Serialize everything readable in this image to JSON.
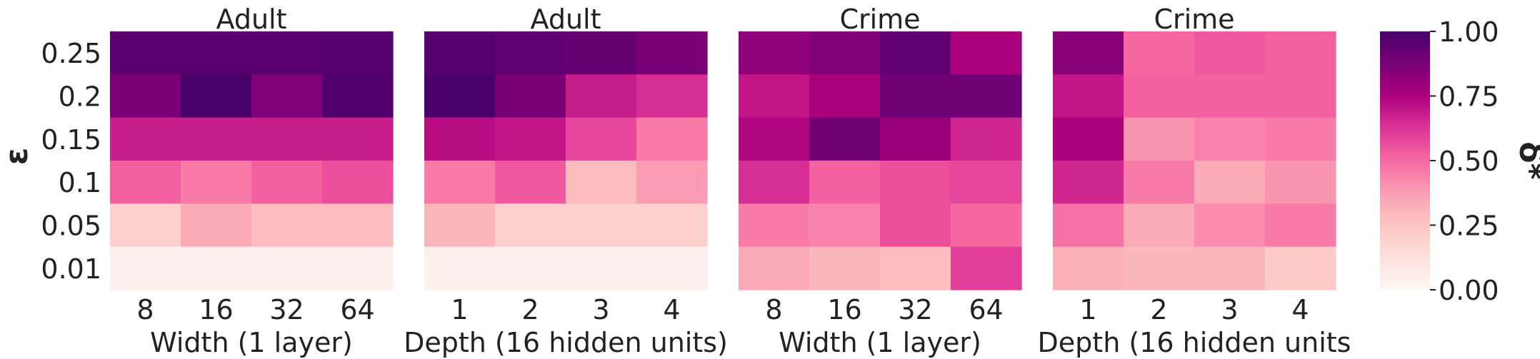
{
  "chart_data": {
    "type": "heatmap",
    "y_label": "ε",
    "y_ticks": [
      "0.25",
      "0.2",
      "0.15",
      "0.1",
      "0.05",
      "0.01"
    ],
    "panels": [
      {
        "title": "Adult",
        "x_label": "Width (1 layer)",
        "x_ticks": [
          "8",
          "16",
          "32",
          "64"
        ],
        "values": [
          [
            0.96,
            0.96,
            0.96,
            0.97
          ],
          [
            0.88,
            1.0,
            0.86,
            0.98
          ],
          [
            0.68,
            0.68,
            0.68,
            0.68
          ],
          [
            0.52,
            0.46,
            0.52,
            0.56
          ],
          [
            0.2,
            0.34,
            0.28,
            0.28
          ],
          [
            0.04,
            0.04,
            0.04,
            0.04
          ]
        ]
      },
      {
        "title": "Adult",
        "x_label": "Depth (16 hidden units)",
        "x_ticks": [
          "1",
          "2",
          "3",
          "4"
        ],
        "values": [
          [
            0.97,
            0.94,
            0.93,
            0.88
          ],
          [
            1.0,
            0.88,
            0.68,
            0.64
          ],
          [
            0.72,
            0.7,
            0.58,
            0.46
          ],
          [
            0.46,
            0.54,
            0.28,
            0.38
          ],
          [
            0.3,
            0.2,
            0.2,
            0.2
          ],
          [
            0.04,
            0.04,
            0.04,
            0.04
          ]
        ]
      },
      {
        "title": "Crime",
        "x_label": "Width (1 layer)",
        "x_ticks": [
          "8",
          "16",
          "32",
          "64"
        ],
        "values": [
          [
            0.82,
            0.86,
            0.94,
            0.76
          ],
          [
            0.7,
            0.76,
            0.9,
            0.9
          ],
          [
            0.74,
            0.9,
            0.8,
            0.66
          ],
          [
            0.64,
            0.52,
            0.56,
            0.58
          ],
          [
            0.46,
            0.44,
            0.56,
            0.5
          ],
          [
            0.34,
            0.3,
            0.28,
            0.6
          ]
        ]
      },
      {
        "title": "Crime",
        "x_label": "Depth (16 hidden units",
        "x_ticks": [
          "1",
          "2",
          "3",
          "4"
        ],
        "values": [
          [
            0.84,
            0.5,
            0.54,
            0.52
          ],
          [
            0.7,
            0.52,
            0.52,
            0.52
          ],
          [
            0.76,
            0.4,
            0.44,
            0.46
          ],
          [
            0.66,
            0.46,
            0.34,
            0.4
          ],
          [
            0.48,
            0.34,
            0.42,
            0.46
          ],
          [
            0.32,
            0.3,
            0.3,
            0.22
          ]
        ]
      }
    ],
    "colorbar": {
      "label": "δ*",
      "ticks": [
        "0.00",
        "0.25",
        "0.50",
        "0.75",
        "1.00"
      ],
      "range": [
        0,
        1
      ],
      "colormap": "RdPu",
      "colors": [
        "#fff7f3",
        "#fde0dd",
        "#fcc5c0",
        "#fa9fb5",
        "#f768a1",
        "#dd3497",
        "#ae017e",
        "#7a0177",
        "#49006a"
      ]
    }
  }
}
